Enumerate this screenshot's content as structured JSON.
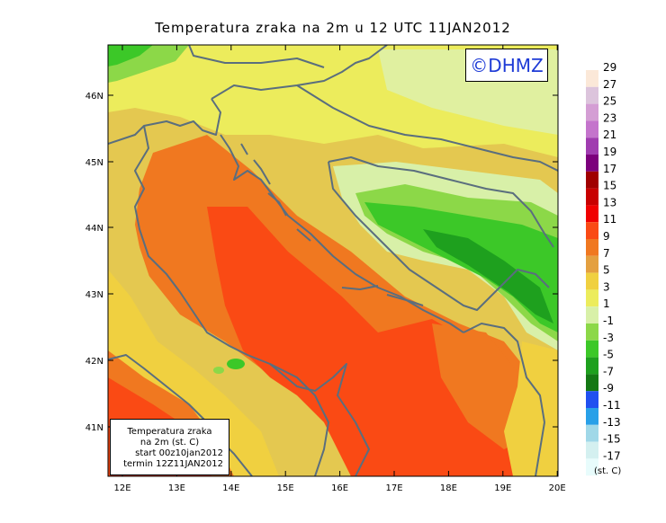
{
  "title": "Temperatura zraka na 2m u 12 UTC 11JAN2012",
  "logo_text": "©DHMZ",
  "info_box": {
    "line1": "Temperatura zraka",
    "line2": "na 2m (st. C)",
    "line3": "start 00z10jan2012",
    "line4": "termin 12Z11JAN2012"
  },
  "lat_labels": [
    "46N",
    "45N",
    "44N",
    "43N",
    "42N",
    "41N"
  ],
  "lon_labels": [
    "12E",
    "13E",
    "14E",
    "15E",
    "16E",
    "17E",
    "18E",
    "19E",
    "20E"
  ],
  "legend": {
    "labels": [
      "29",
      "27",
      "25",
      "23",
      "21",
      "19",
      "17",
      "15",
      "13",
      "11",
      "9",
      "7",
      "5",
      "3",
      "1",
      "-1",
      "-3",
      "-5",
      "-7",
      "-9",
      "-11",
      "-13",
      "-15",
      "-17"
    ],
    "colors": [
      "#fbe8d8",
      "#dcc4dc",
      "#d49ed4",
      "#c474cc",
      "#a03cb0",
      "#7c007c",
      "#a00000",
      "#c80000",
      "#f00000",
      "#fa4a14",
      "#f07820",
      "#e4a040",
      "#f0d040",
      "#ecec5c",
      "#d8f0a8",
      "#8cd848",
      "#3cc828",
      "#1ea01e",
      "#147814",
      "#2050f0",
      "#28a0e8",
      "#a0d8e8",
      "#d4f0f0",
      "#e8fcfc"
    ],
    "unit": "(st. C)"
  },
  "colors": {
    "sea_warm": "#f07820",
    "sea_hot": "#fa4a14",
    "coast_yellow": "#ecec5c",
    "inland_light": "#d8f0a8",
    "inland_green": "#3cc828",
    "coastline": "#5a6e7e"
  }
}
